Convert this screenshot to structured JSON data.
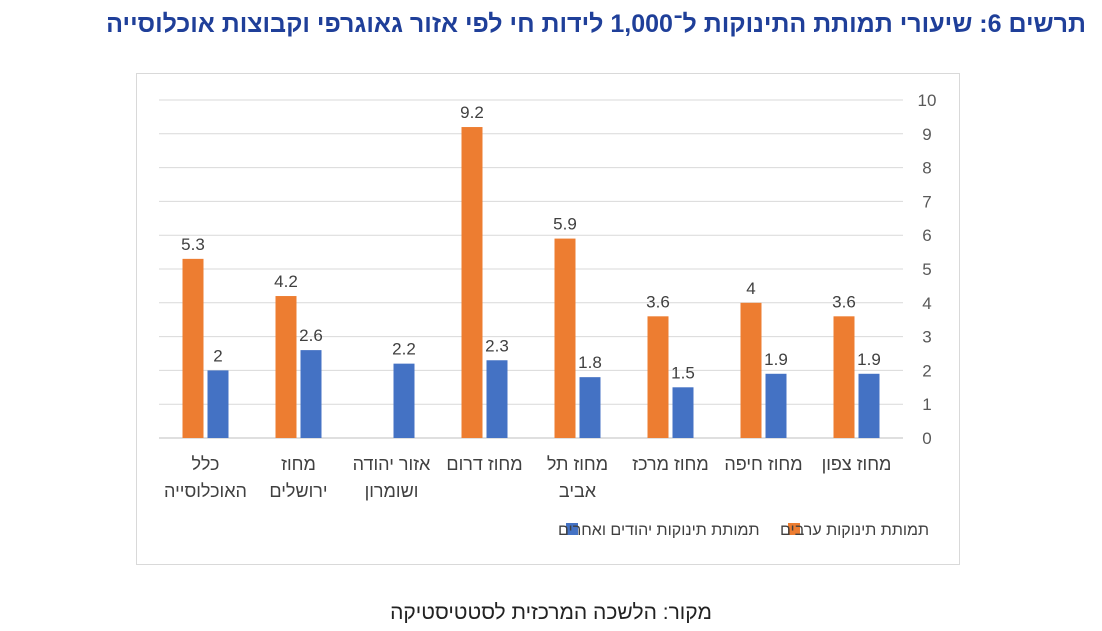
{
  "title": "תרשים 6: שיעורי תמותת התינוקות ל־1,000 לידות חי לפי אזור גאוגרפי וקבוצות אוכלוסייה",
  "source": "מקור: הלשכה המרכזית לסטטיסטיקה",
  "chart_data": {
    "type": "bar",
    "title": "",
    "xlabel": "",
    "ylabel": "",
    "ylim": [
      0,
      10
    ],
    "yticks": [
      "0",
      "1",
      "2",
      "3",
      "4",
      "5",
      "6",
      "7",
      "8",
      "9",
      "10"
    ],
    "grid": true,
    "legend_position": "bottom",
    "axis_side": "right",
    "categories": [
      [
        "מחוז צפון"
      ],
      [
        "מחוז חיפה"
      ],
      [
        "מחוז מרכז"
      ],
      [
        "מחוז תל",
        "אביב"
      ],
      [
        "מחוז דרום"
      ],
      [
        "אזור יהודה",
        "ושומרון"
      ],
      [
        "מחוז",
        "ירושלים"
      ],
      [
        "כלל",
        "האוכלוסייה"
      ]
    ],
    "series": [
      {
        "name": "תמותת תינוקות ערבים",
        "color": "#ed7d31",
        "values": [
          3.6,
          4,
          3.6,
          5.9,
          9.2,
          null,
          4.2,
          5.3
        ],
        "labels": [
          "3.6",
          "4",
          "3.6",
          "5.9",
          "9.2",
          "",
          "4.2",
          "5.3"
        ]
      },
      {
        "name": "תמותת תינוקות יהודים ואחרים",
        "color": "#4472c4",
        "values": [
          1.9,
          1.9,
          1.5,
          1.8,
          2.3,
          2.2,
          2.6,
          2
        ],
        "labels": [
          "1.9",
          "1.9",
          "1.5",
          "1.8",
          "2.3",
          "2.2",
          "2.6",
          "2"
        ]
      }
    ]
  }
}
